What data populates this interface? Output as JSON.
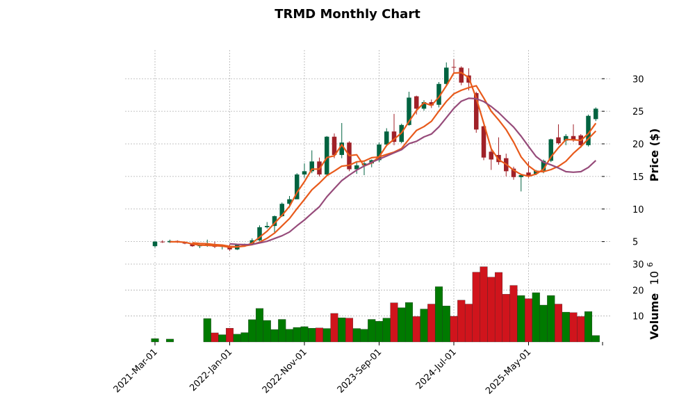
{
  "chart_data": {
    "type": "candlestick",
    "title": "TRMD Monthly Chart",
    "price_panel": {
      "ylabel": "Price ($)",
      "ylim": [
        2.4,
        34.4
      ],
      "yticks": [
        5,
        10,
        15,
        20,
        25,
        30
      ]
    },
    "volume_panel": {
      "ylabel": "Volume",
      "ylabel_exponent": "10",
      "ylabel_power": "6",
      "ylim": [
        0,
        30
      ],
      "yticks": [
        10,
        20,
        30
      ]
    },
    "x_tick_labels": [
      "2021-Mar-01",
      "2022-Jan-01",
      "2022-Nov-01",
      "2023-Sep-01",
      "2024-Jul-01",
      "2025-May-01"
    ],
    "x_tick_indices": [
      0,
      10,
      20,
      30,
      40,
      50
    ],
    "n_points": 60,
    "start_month": "2021-03",
    "ohlc": [
      [
        4.3,
        5.1,
        4.1,
        5.0
      ],
      [
        5.0,
        5.2,
        4.8,
        4.9
      ],
      [
        4.9,
        5.3,
        4.8,
        5.1
      ],
      [
        5.1,
        5.2,
        4.8,
        4.9
      ],
      [
        4.9,
        5.0,
        4.6,
        4.7
      ],
      [
        4.7,
        4.8,
        4.2,
        4.3
      ],
      [
        4.3,
        4.5,
        4.0,
        4.4
      ],
      [
        4.4,
        5.3,
        4.2,
        4.6
      ],
      [
        4.6,
        5.0,
        4.0,
        4.2
      ],
      [
        4.2,
        4.5,
        3.8,
        4.3
      ],
      [
        4.3,
        4.6,
        3.6,
        3.8
      ],
      [
        3.8,
        4.6,
        3.7,
        4.5
      ],
      [
        4.5,
        4.7,
        4.3,
        4.6
      ],
      [
        4.6,
        5.5,
        4.6,
        5.2
      ],
      [
        5.2,
        7.5,
        5.1,
        7.2
      ],
      [
        7.2,
        8.0,
        7.0,
        7.4
      ],
      [
        7.4,
        9.0,
        6.2,
        8.9
      ],
      [
        8.9,
        11.0,
        8.8,
        10.8
      ],
      [
        10.8,
        12.0,
        10.2,
        11.5
      ],
      [
        11.5,
        15.5,
        11.5,
        15.3
      ],
      [
        15.3,
        17.0,
        14.8,
        15.8
      ],
      [
        15.8,
        19.0,
        15.5,
        17.3
      ],
      [
        17.3,
        17.9,
        15.0,
        15.3
      ],
      [
        15.3,
        21.2,
        15.0,
        21.1
      ],
      [
        21.1,
        21.6,
        17.8,
        18.3
      ],
      [
        18.3,
        23.2,
        17.8,
        20.2
      ],
      [
        20.2,
        20.4,
        15.8,
        16.1
      ],
      [
        16.1,
        17.3,
        15.4,
        16.7
      ],
      [
        16.7,
        17.4,
        15.2,
        17.0
      ],
      [
        17.0,
        17.6,
        16.4,
        17.5
      ],
      [
        17.5,
        20.2,
        17.2,
        19.9
      ],
      [
        19.9,
        22.4,
        19.6,
        21.9
      ],
      [
        21.9,
        24.6,
        19.8,
        20.3
      ],
      [
        20.3,
        23.1,
        20.1,
        22.9
      ],
      [
        22.9,
        28.0,
        22.8,
        27.1
      ],
      [
        27.3,
        27.4,
        24.5,
        25.4
      ],
      [
        25.4,
        26.7,
        25.1,
        26.4
      ],
      [
        26.4,
        26.8,
        25.5,
        25.9
      ],
      [
        26.0,
        29.5,
        25.6,
        29.2
      ],
      [
        29.2,
        32.5,
        28.8,
        31.7
      ],
      [
        31.8,
        33.0,
        30.7,
        31.7
      ],
      [
        31.7,
        31.9,
        29.0,
        29.4
      ],
      [
        30.5,
        31.6,
        28.2,
        29.4
      ],
      [
        27.8,
        28.0,
        21.7,
        22.2
      ],
      [
        22.7,
        22.8,
        17.5,
        17.9
      ],
      [
        18.8,
        19.4,
        16.0,
        17.6
      ],
      [
        18.3,
        21.0,
        16.8,
        17.2
      ],
      [
        17.8,
        18.5,
        15.0,
        15.8
      ],
      [
        16.2,
        16.5,
        14.5,
        14.9
      ],
      [
        14.9,
        15.4,
        12.7,
        15.2
      ],
      [
        15.6,
        17.3,
        14.8,
        15.0
      ],
      [
        15.4,
        16.0,
        15.2,
        15.9
      ],
      [
        15.9,
        17.6,
        15.5,
        17.4
      ],
      [
        17.4,
        20.8,
        17.2,
        20.7
      ],
      [
        21.0,
        23.0,
        19.9,
        20.1
      ],
      [
        20.5,
        21.5,
        19.8,
        21.2
      ],
      [
        21.2,
        23.0,
        20.3,
        20.6
      ],
      [
        21.3,
        21.5,
        19.4,
        19.8
      ],
      [
        19.8,
        24.5,
        19.6,
        24.3
      ],
      [
        23.8,
        25.6,
        23.5,
        25.4
      ]
    ],
    "volume": [
      1.3,
      0,
      1.1,
      0,
      0,
      0,
      0,
      9.0,
      3.5,
      2.8,
      5.3,
      3.0,
      3.6,
      8.6,
      12.9,
      8.3,
      4.8,
      8.7,
      4.9,
      5.6,
      5.9,
      5.3,
      5.4,
      5.2,
      11.0,
      9.3,
      9.2,
      5.2,
      4.9,
      8.7,
      8.0,
      9.2,
      15.1,
      13.2,
      15.2,
      9.8,
      12.7,
      14.6,
      21.3,
      13.9,
      9.9,
      16.1,
      14.6,
      26.9,
      29.0,
      25.0,
      26.8,
      18.4,
      21.8,
      17.9,
      16.7,
      19.0,
      14.2,
      17.9,
      14.6,
      11.5,
      11.3,
      9.8,
      11.7,
      2.5
    ],
    "moving_averages": [
      {
        "name": "MA short",
        "color": "#e85a1b",
        "values": [
          null,
          null,
          4.97,
          4.97,
          4.9,
          4.63,
          4.47,
          4.43,
          4.37,
          4.3,
          4.13,
          4.2,
          4.3,
          4.77,
          5.67,
          6.6,
          7.83,
          9.03,
          10.4,
          12.53,
          14.2,
          16.13,
          16.13,
          17.9,
          18.17,
          19.87,
          18.2,
          18.33,
          16.6,
          17.07,
          18.03,
          19.77,
          20.7,
          21.7,
          23.43,
          25.13,
          26.3,
          25.9,
          27.17,
          28.93,
          30.87,
          30.93,
          30.17,
          27.0,
          23.17,
          19.23,
          17.57,
          16.87,
          15.97,
          15.3,
          15.03,
          15.37,
          16.1,
          18.0,
          19.4,
          20.67,
          20.63,
          20.53,
          21.57,
          23.17
        ]
      },
      {
        "name": "MA medium",
        "color": "#e85a1b",
        "values": [
          null,
          null,
          null,
          null,
          null,
          4.82,
          4.72,
          4.67,
          4.53,
          4.47,
          4.27,
          4.2,
          4.35,
          4.53,
          4.9,
          5.52,
          6.3,
          7.42,
          8.53,
          10.05,
          11.47,
          12.95,
          13.97,
          15.13,
          15.82,
          16.58,
          16.73,
          17.25,
          17.37,
          17.88,
          18.0,
          18.38,
          18.73,
          19.3,
          20.73,
          22.07,
          22.65,
          23.47,
          25.02,
          26.52,
          27.68,
          28.22,
          28.63,
          28.92,
          27.05,
          25.0,
          23.67,
          22.18,
          20.27,
          18.0,
          16.63,
          15.78,
          15.73,
          16.05,
          16.55,
          17.33,
          18.55,
          19.57,
          20.78,
          21.97
        ]
      },
      {
        "name": "MA long",
        "color": "#964b7a",
        "values": [
          null,
          null,
          null,
          null,
          null,
          null,
          null,
          null,
          null,
          null,
          4.65,
          4.58,
          4.53,
          4.55,
          4.8,
          5.05,
          5.47,
          5.9,
          6.47,
          7.43,
          8.32,
          9.35,
          10.35,
          11.88,
          13.13,
          14.37,
          15.2,
          15.98,
          16.6,
          17.17,
          17.65,
          18.13,
          18.62,
          19.1,
          20.03,
          20.4,
          21.07,
          21.52,
          22.6,
          24.03,
          25.45,
          26.55,
          27.0,
          26.93,
          26.5,
          25.73,
          24.8,
          23.67,
          22.58,
          21.17,
          19.6,
          18.07,
          17.18,
          16.78,
          16.3,
          15.73,
          15.65,
          15.73,
          16.38,
          17.45
        ]
      }
    ]
  },
  "colors": {
    "up_candle": "#006340",
    "down_candle": "#a02128",
    "up_volume": "#007a00",
    "down_volume": "#d0141c",
    "grid": "#b0b0b0",
    "axis": "#000000"
  }
}
